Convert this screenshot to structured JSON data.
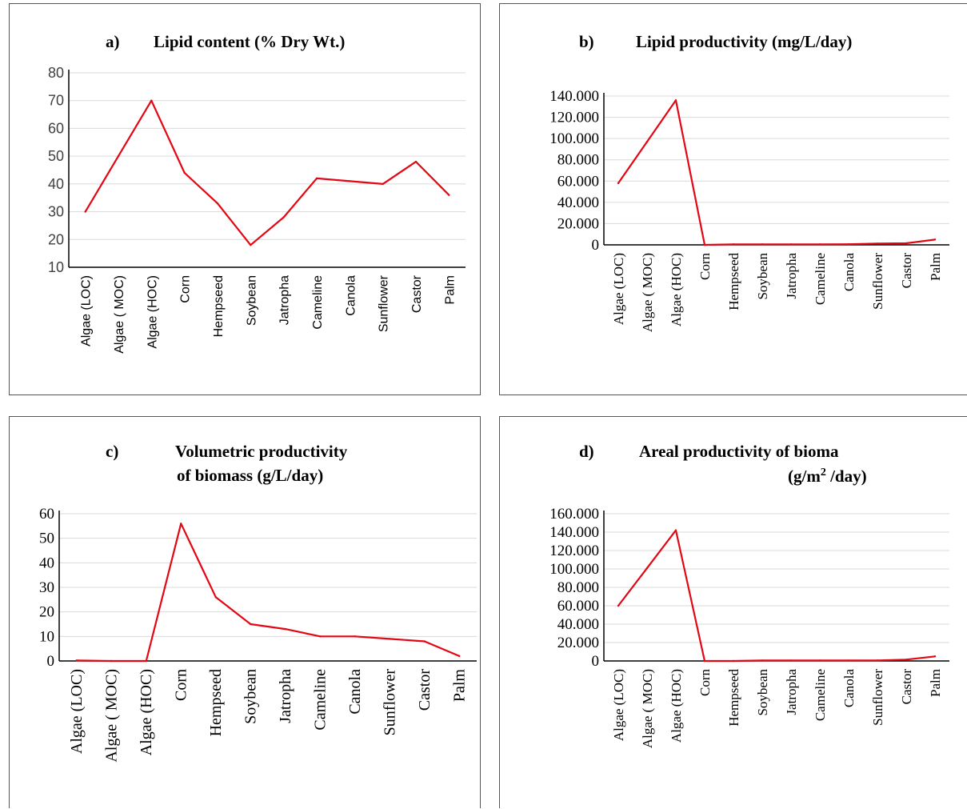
{
  "chart_data": [
    {
      "id": "a",
      "type": "line",
      "title_label": "a)",
      "title": "Lipid content (% Dry Wt.)",
      "categories": [
        "Algae (LOC)",
        "Algae ( MOC)",
        "Algae (HOC)",
        "Corn",
        "Hempseed",
        "Soybean",
        "Jatropha",
        "Cameline",
        "Canola",
        "Sunflower",
        "Castor",
        "Palm"
      ],
      "values": [
        30,
        50,
        70,
        44,
        33,
        18,
        28,
        42,
        41,
        40,
        48,
        36
      ],
      "ylim": [
        10,
        80
      ],
      "yticks": [
        "10",
        "20",
        "30",
        "40",
        "50",
        "60",
        "70",
        "80"
      ],
      "line_color": "#e30613",
      "grid": true
    },
    {
      "id": "b",
      "type": "line",
      "title_label": "b)",
      "title": "Lipid productivity (mg/L/day)",
      "categories": [
        "Algae (LOC)",
        "Algae ( MOC)",
        "Algae (HOC)",
        "Corn",
        "Hempseed",
        "Soybean",
        "Jatropha",
        "Cameline",
        "Canola",
        "Sunflower",
        "Castor",
        "Palm"
      ],
      "values": [
        58000,
        97000,
        136000,
        0,
        500,
        500,
        500,
        500,
        600,
        1200,
        1500,
        5000
      ],
      "ylim": [
        0,
        140000
      ],
      "yticks": [
        "0",
        "20.000",
        "40.000",
        "60.000",
        "80.000",
        "100.000",
        "120.000",
        "140.000"
      ],
      "line_color": "#e30613",
      "grid": true
    },
    {
      "id": "c",
      "type": "line",
      "title_label": "c)",
      "title_line1": "Volumetric productivity",
      "title_line2": "of biomass (g/L/day)",
      "categories": [
        "Algae (LOC)",
        "Algae ( MOC)",
        "Algae (HOC)",
        "Corn",
        "Hempseed",
        "Soybean",
        "Jatropha",
        "Cameline",
        "Canola",
        "Sunflower",
        "Castor",
        "Palm"
      ],
      "values": [
        0.2,
        0,
        0,
        56,
        26,
        15,
        13,
        10,
        10,
        9,
        8,
        2
      ],
      "ylim": [
        0,
        60
      ],
      "yticks": [
        "0",
        "10",
        "20",
        "30",
        "40",
        "50",
        "60"
      ],
      "line_color": "#e30613",
      "grid": true
    },
    {
      "id": "d",
      "type": "line",
      "title_label": "d)",
      "title_line1": "Areal productivity of bioma",
      "title_line2_pre": "(g/m",
      "title_line2_sup": "2",
      "title_line2_post": " /day)",
      "categories": [
        "Algae (LOC)",
        "Algae ( MOC)",
        "Algae (HOC)",
        "Corn",
        "Hempseed",
        "Soybean",
        "Jatropha",
        "Cameline",
        "Canola",
        "Sunflower",
        "Castor",
        "Palm"
      ],
      "values": [
        60000,
        101000,
        142000,
        0,
        0,
        500,
        500,
        500,
        500,
        600,
        1500,
        5000
      ],
      "ylim": [
        0,
        160000
      ],
      "yticks": [
        "0",
        "20.000",
        "40.000",
        "60.000",
        "80.000",
        "100.000",
        "120.000",
        "140.000",
        "160.000"
      ],
      "line_color": "#e30613",
      "grid": true
    }
  ]
}
